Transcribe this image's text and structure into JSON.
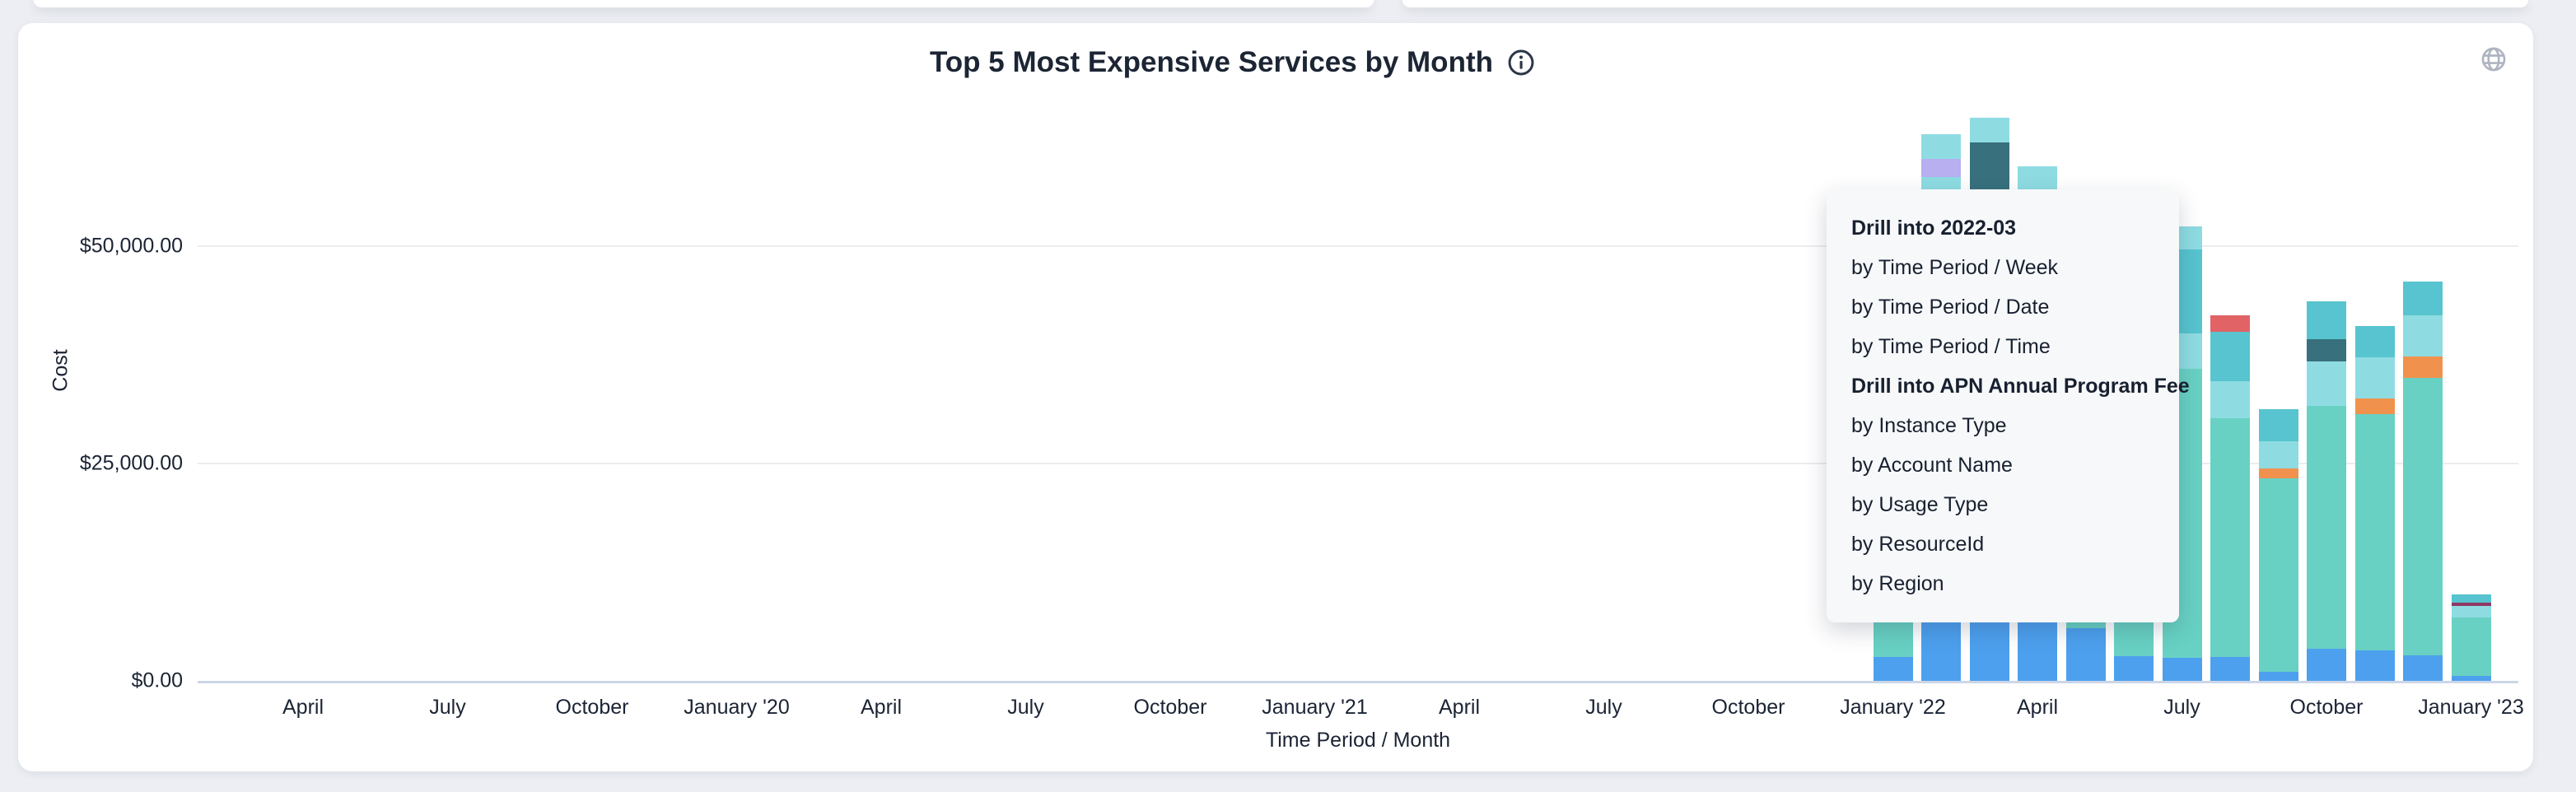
{
  "page": {
    "background": "#eceef3"
  },
  "header": {
    "title": "Top 5 Most Expensive Services by Month",
    "info_icon": "info-circle-icon",
    "globe_icon": "globe-icon",
    "icon_color": "#aeb4c0",
    "title_color": "#1c2534"
  },
  "context_menu": {
    "background": "#f7f8fa",
    "groups": [
      {
        "header": "Drill into 2022-03",
        "items": [
          "by Time Period / Week",
          "by Time Period / Date",
          "by Time Period / Time"
        ]
      },
      {
        "header": "Drill into APN Annual Program Fee",
        "items": [
          "by Instance Type",
          "by Account Name",
          "by Usage Type",
          "by ResourceId",
          "by Region"
        ]
      }
    ]
  },
  "chart_data": {
    "type": "bar",
    "stacked": true,
    "title": "Top 5 Most Expensive Services by Month",
    "x_axis": {
      "label": "Time Period / Month",
      "ticks": [
        "April",
        "July",
        "October",
        "January '20",
        "April",
        "July",
        "October",
        "January '21",
        "April",
        "July",
        "October",
        "January '22",
        "April",
        "July",
        "October",
        "January '23"
      ]
    },
    "y_axis": {
      "label": "Cost",
      "ticks": [
        {
          "label": "$0.00",
          "value": 0
        },
        {
          "label": "$25,000.00",
          "value": 25000
        },
        {
          "label": "$50,000.00",
          "value": 50000
        }
      ],
      "ylim": [
        0,
        66000
      ]
    },
    "grid": "horizontal",
    "legend": "not visible in screenshot; series identified by segment color",
    "colors": {
      "blue": "#4da0ee",
      "green": "#68d1c3",
      "lightcyan": "#8edce2",
      "tealblue": "#57c4cf",
      "darkteal": "#38707d",
      "orange": "#f0924e",
      "red": "#e16366",
      "purple": "#b7aff0",
      "maroon": "#8e3963"
    },
    "note": "Months before 2022-01 have no visible bars (~$0). Segments listed bottom-to-top; values in USD estimated from axis scale. Middle of Jan-Jun 2022 bars is occluded by the context menu.",
    "months": [
      {
        "label": "2022-01",
        "total": 6730,
        "segments": [
          [
            "blue",
            2750
          ],
          [
            "green",
            3980
          ]
        ]
      },
      {
        "label": "2022-02",
        "total": 62860,
        "segments": [
          [
            "blue",
            7950
          ],
          [
            "green",
            30590
          ],
          [
            "lightcyan",
            19400
          ],
          [
            "purple",
            2080
          ],
          [
            "lightcyan",
            2840
          ]
        ]
      },
      {
        "label": "2022-03",
        "total": 64780,
        "segments": [
          [
            "blue",
            8240
          ],
          [
            "green",
            29360
          ],
          [
            "darkteal",
            24340
          ],
          [
            "lightcyan",
            2840
          ]
        ]
      },
      {
        "label": "2022-04",
        "total": 59190,
        "segments": [
          [
            "blue",
            7770
          ],
          [
            "green",
            26040
          ],
          [
            "lightcyan",
            25380
          ]
        ]
      },
      {
        "label": "2022-05",
        "total": 21500,
        "segments": [
          [
            "blue",
            6060
          ],
          [
            "green",
            15440
          ]
        ]
      },
      {
        "label": "2022-06",
        "total": 25280,
        "segments": [
          [
            "blue",
            2840
          ],
          [
            "green",
            22440
          ]
        ]
      },
      {
        "label": "2022-07",
        "total": 52270,
        "segments": [
          [
            "blue",
            2650
          ],
          [
            "green",
            33240
          ],
          [
            "lightcyan",
            4070
          ],
          [
            "tealblue",
            9660
          ],
          [
            "lightcyan",
            2650
          ]
        ]
      },
      {
        "label": "2022-08",
        "total": 42040,
        "segments": [
          [
            "blue",
            2750
          ],
          [
            "green",
            27460
          ],
          [
            "lightcyan",
            4260
          ],
          [
            "tealblue",
            5680
          ],
          [
            "red",
            1890
          ]
        ]
      },
      {
        "label": "2022-09",
        "total": 31250,
        "segments": [
          [
            "blue",
            1040
          ],
          [
            "green",
            22250
          ],
          [
            "orange",
            1140
          ],
          [
            "lightcyan",
            3130
          ],
          [
            "tealblue",
            3690
          ]
        ]
      },
      {
        "label": "2022-10",
        "total": 43660,
        "segments": [
          [
            "blue",
            3690
          ],
          [
            "green",
            27940
          ],
          [
            "lightcyan",
            5110
          ],
          [
            "darkteal",
            2560
          ],
          [
            "tealblue",
            4360
          ]
        ]
      },
      {
        "label": "2022-11",
        "total": 40820,
        "segments": [
          [
            "blue",
            3500
          ],
          [
            "green",
            27180
          ],
          [
            "orange",
            1800
          ],
          [
            "lightcyan",
            4740
          ],
          [
            "tealblue",
            3600
          ]
        ]
      },
      {
        "label": "2022-12",
        "total": 45930,
        "segments": [
          [
            "blue",
            2940
          ],
          [
            "green",
            31910
          ],
          [
            "orange",
            2460
          ],
          [
            "lightcyan",
            4740
          ],
          [
            "tealblue",
            3880
          ]
        ]
      },
      {
        "label": "2023-01",
        "total": 9950,
        "segments": [
          [
            "blue",
            570
          ],
          [
            "green",
            6720
          ],
          [
            "lightcyan",
            1330
          ],
          [
            "maroon",
            380
          ],
          [
            "tealblue",
            950
          ]
        ]
      }
    ]
  }
}
